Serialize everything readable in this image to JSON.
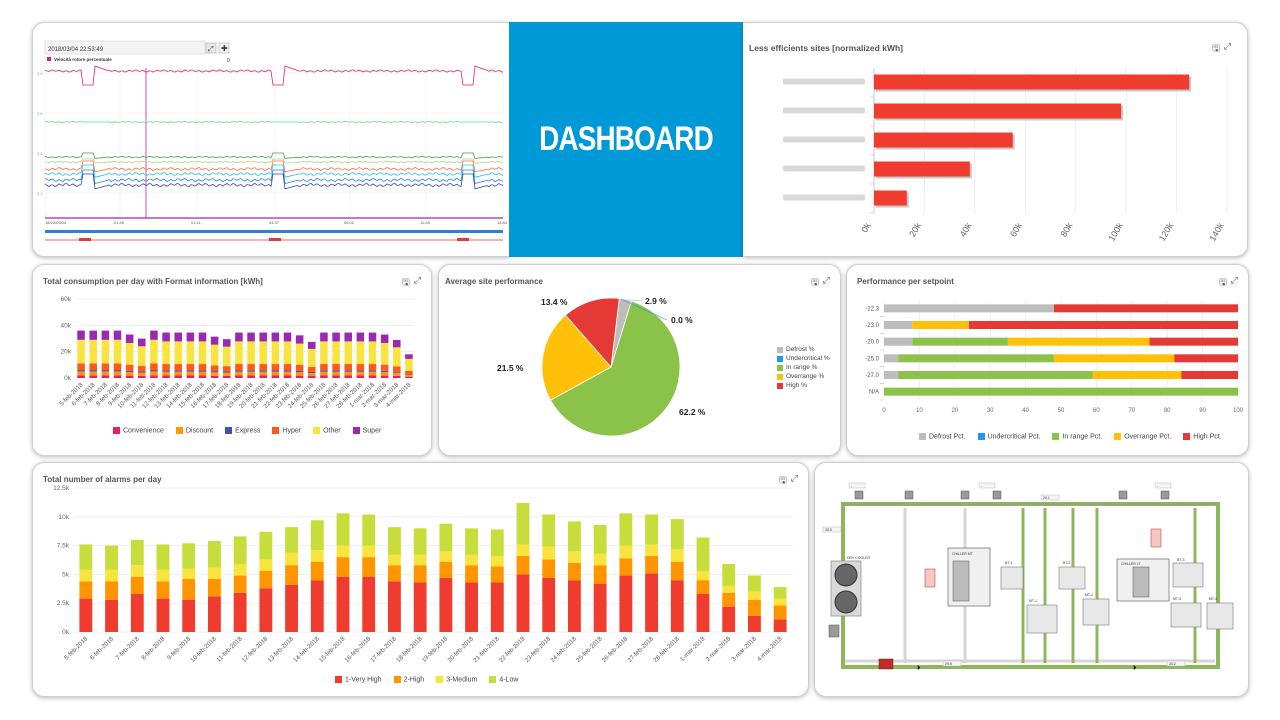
{
  "dashboard_title": "DASHBOARD",
  "colors": {
    "brand": "#0099d8",
    "red": "#f03c2e",
    "orange": "#ff9600",
    "yellow": "#f8e43c",
    "lime": "#c6dd3b",
    "green": "#8bc34a",
    "gray": "#bdbdbd",
    "blue": "#2196f3",
    "purple": "#9c27b0",
    "pink": "#e91e63",
    "navy": "#3f51b5",
    "hyper": "#ff5722"
  },
  "trend": {
    "timestamp": "2018/03/04 22:53:49",
    "expand_icon": "expand-icon",
    "pan_icon": "move-icon",
    "series_label": "Velocità rotore percentuale",
    "series_value": "0",
    "y_labels": [
      "0.8",
      "0.6",
      "0.4",
      "0.2"
    ],
    "x_labels": [
      "18/20/03/04",
      "21:45",
      "01:11",
      "04:37",
      "08:02",
      "11:28",
      "14:54"
    ]
  },
  "panels": {
    "sites": {
      "title": "Less efficients sites [normalized kWh]",
      "export_icon": "save-icon",
      "expand_icon": "expand-icon"
    },
    "consumption": {
      "title": "Total consumption per day with Format information [kWh]",
      "export_icon": "save-icon",
      "expand_icon": "expand-icon"
    },
    "performance": {
      "title": "Average site performance",
      "export_icon": "save-icon",
      "expand_icon": "expand-icon"
    },
    "setpoint": {
      "title": "Performance per setpoint",
      "export_icon": "save-icon",
      "expand_icon": "expand-icon"
    },
    "alarms": {
      "title": "Total number of alarms per day",
      "export_icon": "save-icon",
      "expand_icon": "expand-icon"
    }
  },
  "legends": {
    "consumption": [
      {
        "label": "Convenience",
        "color": "#e91e63"
      },
      {
        "label": "Discount",
        "color": "#ff9800"
      },
      {
        "label": "Express",
        "color": "#3f51b5"
      },
      {
        "label": "Hyper",
        "color": "#ff5722"
      },
      {
        "label": "Other",
        "color": "#f8e43c"
      },
      {
        "label": "Super",
        "color": "#9c27b0"
      }
    ],
    "performance": [
      {
        "label": "Defrost %",
        "color": "#bdbdbd"
      },
      {
        "label": "Undercritical %",
        "color": "#2196f3"
      },
      {
        "label": "In range %",
        "color": "#8bc34a"
      },
      {
        "label": "Overrange %",
        "color": "#ffc107"
      },
      {
        "label": "High %",
        "color": "#e53935"
      }
    ],
    "setpoint": [
      {
        "label": "Defrost Pct.",
        "color": "#bdbdbd"
      },
      {
        "label": "Undercritical Pct.",
        "color": "#2196f3"
      },
      {
        "label": "In range Pct.",
        "color": "#8bc34a"
      },
      {
        "label": "Overrange Pct.",
        "color": "#ffc107"
      },
      {
        "label": "High Pct.",
        "color": "#e53935"
      }
    ],
    "alarms": [
      {
        "label": "1-Very High",
        "color": "#f03c2e"
      },
      {
        "label": "2-High",
        "color": "#ff9600"
      },
      {
        "label": "3-Medium",
        "color": "#f8e43c"
      },
      {
        "label": "4-Low",
        "color": "#c6dd3b"
      }
    ]
  },
  "chart_data": [
    {
      "id": "sites",
      "type": "bar",
      "orientation": "horizontal",
      "title": "Less efficients sites [normalized kWh]",
      "categories": [
        "",
        "",
        "",
        "",
        ""
      ],
      "values": [
        125000,
        98000,
        55000,
        38000,
        13000
      ],
      "xlim": [
        0,
        140000
      ],
      "tick_labels": [
        "0k",
        "20k",
        "40k",
        "60k",
        "80k",
        "100k",
        "120k",
        "140k"
      ],
      "grid": true
    },
    {
      "id": "consumption",
      "type": "bar",
      "stacked": true,
      "title": "Total consumption per day with Format information [kWh]",
      "categories": [
        "5-feb-2018",
        "6-feb-2018",
        "7-feb-2018",
        "8-feb-2018",
        "9-feb-2018",
        "10-feb-2018",
        "11-feb-2018",
        "12-feb-2018",
        "13-feb-2018",
        "14-feb-2018",
        "15-feb-2018",
        "16-feb-2018",
        "17-feb-2018",
        "18-feb-2018",
        "19-feb-2018",
        "20-feb-2018",
        "21-feb-2018",
        "22-feb-2018",
        "23-feb-2018",
        "24-feb-2018",
        "25-feb-2018",
        "26-feb-2018",
        "27-feb-2018",
        "28-feb-2018",
        "1-mar-2018",
        "2-mar-2018",
        "3-mar-2018",
        "4-mar-2018"
      ],
      "series": [
        {
          "name": "Convenience",
          "values": [
            2000,
            2000,
            2000,
            2000,
            1800,
            1600,
            2000,
            1900,
            1900,
            1900,
            1900,
            1700,
            1600,
            1900,
            1900,
            1900,
            1900,
            1900,
            1800,
            1500,
            1900,
            1900,
            1900,
            1900,
            1900,
            1800,
            1600,
            1000
          ]
        },
        {
          "name": "Discount",
          "values": [
            3000,
            3000,
            3000,
            3000,
            2800,
            2500,
            3000,
            2900,
            2900,
            2900,
            2900,
            2600,
            2500,
            2900,
            2900,
            2900,
            2900,
            2900,
            2700,
            2300,
            2900,
            2900,
            2900,
            2900,
            2900,
            2800,
            2400,
            1500
          ]
        },
        {
          "name": "Express",
          "values": [
            1000,
            1000,
            1000,
            1000,
            900,
            800,
            1000,
            1000,
            1000,
            1000,
            1000,
            900,
            800,
            1000,
            1000,
            1000,
            1000,
            1000,
            900,
            800,
            1000,
            1000,
            1000,
            1000,
            1000,
            900,
            800,
            500
          ]
        },
        {
          "name": "Hyper",
          "values": [
            5000,
            5000,
            5000,
            5000,
            4600,
            4200,
            5000,
            4800,
            4800,
            4800,
            4800,
            4400,
            4100,
            4800,
            4800,
            4800,
            4800,
            4800,
            4500,
            3800,
            4800,
            4800,
            4800,
            4800,
            4800,
            4600,
            4000,
            2500
          ]
        },
        {
          "name": "Other",
          "values": [
            18000,
            18000,
            18000,
            18000,
            16500,
            15000,
            18000,
            17200,
            17200,
            17200,
            17200,
            15700,
            14800,
            17200,
            17200,
            17200,
            17200,
            17200,
            16200,
            13700,
            17200,
            17200,
            17200,
            17200,
            17200,
            16500,
            14500,
            9000
          ]
        },
        {
          "name": "Super",
          "values": [
            7000,
            7000,
            7000,
            7000,
            6400,
            5800,
            7000,
            6700,
            6700,
            6700,
            6700,
            6100,
            5700,
            6700,
            6700,
            6700,
            6700,
            6700,
            6300,
            5300,
            6700,
            6700,
            6700,
            6700,
            6700,
            6400,
            5600,
            3500
          ]
        }
      ],
      "ylim": [
        0,
        60000
      ],
      "y_ticks": [
        "0k",
        "20k",
        "40k",
        "60k"
      ],
      "grid": true,
      "legend": "bottom"
    },
    {
      "id": "performance",
      "type": "pie",
      "title": "Average site performance",
      "slices": [
        {
          "name": "Defrost %",
          "value": 2.9,
          "label": "2.9 %"
        },
        {
          "name": "Undercritical %",
          "value": 0.0,
          "label": "0.0 %"
        },
        {
          "name": "In range %",
          "value": 62.2,
          "label": "62.2 %"
        },
        {
          "name": "Overrange %",
          "value": 21.5,
          "label": "21.5 %"
        },
        {
          "name": "High %",
          "value": 13.4,
          "label": "13.4 %"
        }
      ],
      "legend": "right"
    },
    {
      "id": "setpoint",
      "type": "bar",
      "orientation": "horizontal",
      "stacked": true,
      "title": "Performance per setpoint",
      "categories": [
        "-22.3",
        "-23.0",
        "-20.0",
        "-25.0",
        "-27.0",
        "N/A"
      ],
      "series": [
        {
          "name": "Defrost Pct.",
          "values": [
            48,
            8,
            8,
            4,
            4,
            0
          ]
        },
        {
          "name": "Undercritical Pct.",
          "values": [
            0,
            0,
            0,
            0,
            0,
            0
          ]
        },
        {
          "name": "In range Pct.",
          "values": [
            0,
            0,
            27,
            44,
            55,
            100
          ]
        },
        {
          "name": "Overrange Pct.",
          "values": [
            0,
            16,
            40,
            34,
            25,
            0
          ]
        },
        {
          "name": "High Pct.",
          "values": [
            52,
            76,
            25,
            18,
            16,
            0
          ]
        }
      ],
      "xlim": [
        0,
        100
      ],
      "x_ticks": [
        "0",
        "10",
        "20",
        "30",
        "40",
        "50",
        "60",
        "70",
        "80",
        "90",
        "100"
      ],
      "legend": "bottom"
    },
    {
      "id": "alarms",
      "type": "bar",
      "stacked": true,
      "title": "Total number of alarms per day",
      "categories": [
        "5-feb-2018",
        "6-feb-2018",
        "7-feb-2018",
        "8-feb-2018",
        "9-feb-2018",
        "10-feb-2018",
        "11-feb-2018",
        "12-feb-2018",
        "13-feb-2018",
        "14-feb-2018",
        "15-feb-2018",
        "16-feb-2018",
        "17-feb-2018",
        "18-feb-2018",
        "19-feb-2018",
        "20-feb-2018",
        "21-feb-2018",
        "22-feb-2018",
        "23-feb-2018",
        "24-feb-2018",
        "25-feb-2018",
        "26-feb-2018",
        "27-feb-2018",
        "28-feb-2018",
        "1-mar-2018",
        "2-mar-2018",
        "3-mar-2018",
        "4-mar-2018"
      ],
      "series": [
        {
          "name": "1-Very High",
          "values": [
            2900,
            2800,
            3300,
            2900,
            2800,
            3100,
            3400,
            3800,
            4100,
            4500,
            4800,
            4800,
            4400,
            4300,
            4700,
            4300,
            4300,
            5000,
            4700,
            4500,
            4200,
            4900,
            5100,
            4500,
            3300,
            2200,
            1400,
            1100
          ]
        },
        {
          "name": "2-High",
          "values": [
            1500,
            1600,
            1500,
            1500,
            1800,
            1500,
            1500,
            1500,
            1700,
            1600,
            1700,
            1700,
            1400,
            1500,
            1400,
            1500,
            1400,
            1600,
            1600,
            1500,
            1600,
            1500,
            1500,
            1600,
            1200,
            1200,
            1400,
            1200
          ]
        },
        {
          "name": "3-Medium",
          "values": [
            1000,
            1000,
            1000,
            1000,
            900,
            1000,
            1000,
            1000,
            1100,
            1000,
            1000,
            1000,
            900,
            900,
            900,
            900,
            900,
            1000,
            1100,
            1000,
            1000,
            1100,
            1000,
            1100,
            800,
            600,
            700,
            600
          ]
        },
        {
          "name": "4-Low",
          "values": [
            2200,
            2100,
            2200,
            2200,
            2200,
            2300,
            2400,
            2400,
            2200,
            2600,
            2800,
            2700,
            2400,
            2300,
            2400,
            2300,
            2300,
            3600,
            2800,
            2600,
            2500,
            2800,
            2600,
            2600,
            2900,
            1900,
            1400,
            1000
          ]
        }
      ],
      "ylim": [
        0,
        12500
      ],
      "y_ticks": [
        "0k",
        "2.5k",
        "5k",
        "7.5k",
        "10k",
        "12.5k"
      ],
      "grid": true,
      "legend": "bottom"
    }
  ],
  "plant": {
    "labels": [
      "DRY COOLER",
      "CHILLER MT",
      "CHILLER LT",
      "BT-1",
      "BT-2",
      "BT-3",
      "MT-1",
      "MT-2",
      "MT-3",
      "MT-4",
      "28.5",
      "29.5",
      "20.1",
      "30.2",
      "-",
      "-",
      "-"
    ]
  }
}
